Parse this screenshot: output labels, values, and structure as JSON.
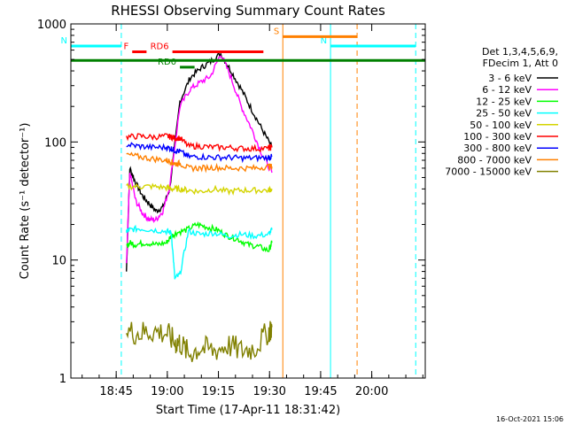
{
  "chart_data": {
    "type": "line",
    "title": "RHESSI Observing Summary Count Rates",
    "xlabel": "Start Time (17-Apr-11 18:31:42)",
    "ylabel": "Count Rate (s⁻¹ detector⁻¹)",
    "x_units": "minutes after 18:31:42",
    "xlim": [
      0,
      104
    ],
    "ylim": [
      1,
      1000
    ],
    "yscale": "log",
    "x_tick_labels": [
      "18:45",
      "19:00",
      "19:15",
      "19:30",
      "19:45",
      "20:00"
    ],
    "x_ticks": [
      13.3,
      28.3,
      43.3,
      58.3,
      73.3,
      88.3
    ],
    "y_tick_labels": [
      "1",
      "10",
      "100",
      "1000"
    ],
    "y_ticks": [
      1,
      10,
      100,
      1000
    ],
    "legend": {
      "placement": "right",
      "header": [
        "Det 1,3,4,5,6,9,",
        "FDecim 1, Att 0"
      ]
    },
    "footer_date": "16-Oct-2021 15:06",
    "series": [
      {
        "name": "3 - 6 keV",
        "color": "#000000",
        "x": [
          16.3,
          17.3,
          19,
          21,
          23,
          25,
          27,
          29,
          32,
          35,
          38,
          41,
          44,
          47,
          50,
          53,
          56,
          59
        ],
        "y": [
          8,
          60,
          45,
          35,
          30,
          26,
          28,
          40,
          220,
          350,
          420,
          480,
          560,
          400,
          280,
          190,
          130,
          90
        ]
      },
      {
        "name": "6 - 12 keV",
        "color": "#ff00ff",
        "x": [
          16.3,
          17.3,
          19,
          21,
          23,
          25,
          27,
          29,
          32,
          35,
          38,
          41,
          44,
          47,
          50,
          53,
          56,
          59
        ],
        "y": [
          9,
          55,
          32,
          25,
          22,
          22,
          26,
          42,
          200,
          280,
          320,
          360,
          560,
          350,
          200,
          130,
          80,
          55
        ]
      },
      {
        "name": "12 - 25 keV",
        "color": "#00ff00",
        "x": [
          16.3,
          17.3,
          19,
          22,
          25,
          28,
          29.5,
          31,
          34,
          37,
          40,
          43,
          46,
          49,
          52,
          55,
          58,
          59
        ],
        "y": [
          13,
          14,
          13.5,
          14,
          13.5,
          14,
          16,
          17,
          18,
          20,
          19,
          18,
          16,
          15,
          13.5,
          13,
          12,
          14
        ]
      },
      {
        "name": "25 - 50 keV",
        "color": "#00ffff",
        "x": [
          16.3,
          17.3,
          20,
          24,
          28,
          29.5,
          30.5,
          32,
          34.5,
          38,
          42,
          46,
          50,
          54,
          58,
          59
        ],
        "y": [
          17.5,
          18,
          18.5,
          18,
          17.5,
          17,
          7,
          7.5,
          17.5,
          16.5,
          17,
          16,
          16.5,
          16,
          16.5,
          18
        ]
      },
      {
        "name": "50 - 100 keV",
        "color": "#d4d400",
        "x": [
          16.3,
          20,
          24,
          28,
          30,
          32,
          34.5,
          38,
          42,
          46,
          50,
          54,
          58,
          59
        ],
        "y": [
          42,
          42,
          42,
          41,
          40,
          40,
          39,
          38,
          40,
          38,
          39,
          39,
          39,
          40
        ]
      },
      {
        "name": "100 - 300 keV",
        "color": "#ff0000",
        "x": [
          16.3,
          20,
          24,
          28,
          29.5,
          30.5,
          32,
          34.5,
          38,
          42,
          46,
          50,
          54,
          58,
          59
        ],
        "y": [
          110,
          112,
          110,
          112,
          110,
          108,
          108,
          92,
          92,
          90,
          90,
          88,
          88,
          88,
          90
        ]
      },
      {
        "name": "300 - 800 keV",
        "color": "#0000ff",
        "x": [
          16.3,
          20,
          24,
          28,
          29.5,
          30.5,
          32,
          34.5,
          38,
          42,
          46,
          50,
          54,
          58,
          59
        ],
        "y": [
          95,
          92,
          90,
          90,
          88,
          85,
          83,
          75,
          75,
          74,
          74,
          73,
          73,
          74,
          75
        ]
      },
      {
        "name": "800 - 7000 keV",
        "color": "#ff8000",
        "x": [
          16.3,
          20,
          24,
          28,
          29.5,
          30.5,
          32,
          34.5,
          38,
          42,
          46,
          50,
          54,
          58,
          59
        ],
        "y": [
          78,
          75,
          72,
          70,
          68,
          65,
          66,
          60,
          60,
          61,
          60,
          60,
          60,
          62,
          62
        ]
      },
      {
        "name": "7000 - 15000 keV",
        "color": "#808000",
        "x": [
          16.3,
          20,
          24,
          28,
          30.5,
          32,
          34.5,
          38,
          42,
          46,
          50,
          54,
          58,
          59
        ],
        "y": [
          2.5,
          2.4,
          2.5,
          2.4,
          2,
          2,
          1.6,
          1.8,
          1.7,
          1.9,
          1.7,
          1.8,
          2.5,
          2.7
        ]
      }
    ],
    "annotations": [
      {
        "label": "N",
        "color": "#00ffff",
        "type": "flag",
        "x_start": 0,
        "x_end": 14.8,
        "y": 650
      },
      {
        "label": "N",
        "color": "#00ffff",
        "type": "flag",
        "x_start": 76.2,
        "x_end": 101.2,
        "y": 650
      },
      {
        "label": "S",
        "color": "#ff8000",
        "type": "flag",
        "x_start": 62.2,
        "x_end": 84,
        "y": 780
      },
      {
        "label": "F",
        "color": "#ff0000",
        "type": "flag",
        "x_start": 18,
        "x_end": 22.2,
        "y": 580
      },
      {
        "label": "RD6",
        "color": "#ff0000",
        "type": "flag",
        "x_start": 29.8,
        "x_end": 56.5,
        "y": 580
      },
      {
        "label": "RD0",
        "color": "#008000",
        "type": "flag",
        "x_start": 32,
        "x_end": 36.3,
        "y": 430
      },
      {
        "label": "",
        "color": "#008000",
        "type": "flag",
        "x_start": 0,
        "x_end": 104,
        "y": 490
      }
    ],
    "vertical_lines": [
      {
        "x": 0,
        "color": "#00ffff",
        "style": "solid"
      },
      {
        "x": 14.8,
        "color": "#00ffff",
        "style": "dashed"
      },
      {
        "x": 62.2,
        "color": "#ff8000",
        "style": "solid"
      },
      {
        "x": 76.2,
        "color": "#00ffff",
        "style": "solid"
      },
      {
        "x": 84,
        "color": "#ff8000",
        "style": "dashed"
      },
      {
        "x": 101.2,
        "color": "#00ffff",
        "style": "dashed"
      }
    ]
  }
}
